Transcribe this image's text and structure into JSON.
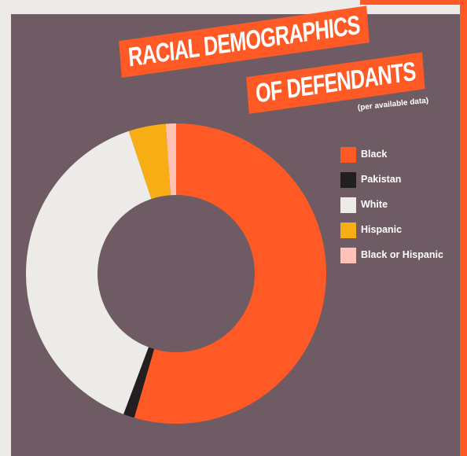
{
  "colors": {
    "background": "#ecebe8",
    "panel": "#6f5b64",
    "accent": "#ff5a26"
  },
  "chart_data": {
    "type": "pie",
    "donut": true,
    "title_line1": "RACIAL DEMOGRAPHICS",
    "title_line2": "OF DEFENDANTS",
    "subtitle": "(per available data)",
    "legend_position": "right",
    "categories": [
      "Black",
      "Pakistan",
      "White",
      "Hispanic",
      "Black or Hispanic"
    ],
    "values": [
      54.5,
      1.2,
      39.2,
      4.0,
      1.1
    ],
    "colors": [
      "#ff5a26",
      "#231f20",
      "#ecebe8",
      "#f9ad15",
      "#ffc2b4"
    ]
  }
}
